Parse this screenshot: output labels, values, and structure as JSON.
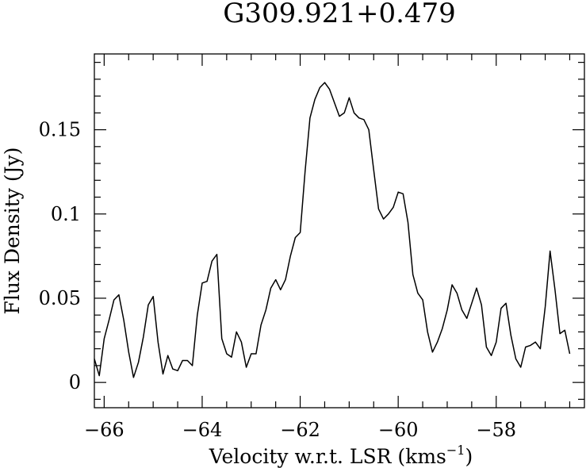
{
  "chart_data": {
    "type": "line",
    "title": "G309.921+0.479",
    "xlabel": "Velocity w.r.t. LSR (kms",
    "xlabel_sup": "−1",
    "xlabel_close": ")",
    "ylabel": "Flux Density (Jy)",
    "xlim": [
      -66.2,
      -56.2
    ],
    "ylim": [
      -0.015,
      0.195
    ],
    "x_ticks": [
      -66,
      -64,
      -62,
      -60,
      -58
    ],
    "x_tick_labels": [
      "−66",
      "−64",
      "−62",
      "−60",
      "−58"
    ],
    "y_ticks": [
      0,
      0.05,
      0.1,
      0.15
    ],
    "y_tick_labels": [
      "0",
      "0.05",
      "0.1",
      "0.15"
    ],
    "grid": false,
    "legend": "none",
    "line_color": "#000000",
    "series": [
      {
        "x": [
          -66.2,
          -66.1,
          -66.0,
          -65.9,
          -65.8,
          -65.7,
          -65.6,
          -65.5,
          -65.4,
          -65.3,
          -65.2,
          -65.1,
          -65.0,
          -64.9,
          -64.8,
          -64.7,
          -64.6,
          -64.5,
          -64.4,
          -64.3,
          -64.2,
          -64.1,
          -64.0,
          -63.9,
          -63.8,
          -63.7,
          -63.6,
          -63.5,
          -63.4,
          -63.3,
          -63.2,
          -63.1,
          -63.0,
          -62.9,
          -62.8,
          -62.7,
          -62.6,
          -62.5,
          -62.4,
          -62.3,
          -62.2,
          -62.1,
          -62.0,
          -61.9,
          -61.8,
          -61.7,
          -61.6,
          -61.5,
          -61.4,
          -61.3,
          -61.2,
          -61.1,
          -61.0,
          -60.9,
          -60.8,
          -60.7,
          -60.6,
          -60.5,
          -60.4,
          -60.3,
          -60.2,
          -60.1,
          -60.0,
          -59.9,
          -59.8,
          -59.7,
          -59.6,
          -59.5,
          -59.4,
          -59.3,
          -59.2,
          -59.1,
          -59.0,
          -58.9,
          -58.8,
          -58.7,
          -58.6,
          -58.5,
          -58.4,
          -58.3,
          -58.2,
          -58.1,
          -58.0,
          -57.9,
          -57.8,
          -57.7,
          -57.6,
          -57.5,
          -57.4,
          -57.3,
          -57.2,
          -57.1,
          -57.0,
          -56.9,
          -56.8,
          -56.7,
          -56.6,
          -56.5
        ],
        "y": [
          0.014,
          0.004,
          0.026,
          0.037,
          0.049,
          0.052,
          0.037,
          0.018,
          0.003,
          0.012,
          0.027,
          0.046,
          0.051,
          0.024,
          0.005,
          0.016,
          0.008,
          0.007,
          0.013,
          0.013,
          0.01,
          0.04,
          0.059,
          0.06,
          0.072,
          0.076,
          0.026,
          0.017,
          0.015,
          0.03,
          0.024,
          0.009,
          0.017,
          0.017,
          0.034,
          0.043,
          0.056,
          0.061,
          0.055,
          0.061,
          0.075,
          0.086,
          0.089,
          0.125,
          0.157,
          0.168,
          0.175,
          0.178,
          0.174,
          0.166,
          0.158,
          0.16,
          0.169,
          0.16,
          0.157,
          0.156,
          0.15,
          0.126,
          0.103,
          0.097,
          0.1,
          0.104,
          0.113,
          0.112,
          0.095,
          0.064,
          0.053,
          0.049,
          0.03,
          0.018,
          0.024,
          0.032,
          0.043,
          0.058,
          0.053,
          0.043,
          0.038,
          0.047,
          0.056,
          0.046,
          0.021,
          0.016,
          0.024,
          0.044,
          0.047,
          0.028,
          0.014,
          0.009,
          0.021,
          0.022,
          0.024,
          0.02,
          0.045,
          0.078,
          0.055,
          0.029,
          0.031,
          0.017
        ]
      }
    ]
  }
}
